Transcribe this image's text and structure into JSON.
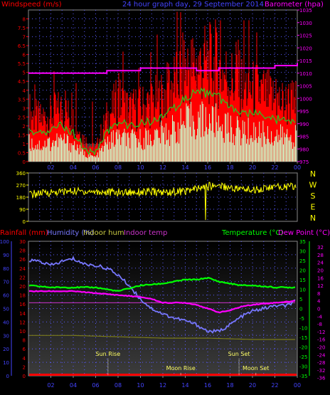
{
  "header": {
    "windspeed_label": "Windspeed (m/s)",
    "title": "24 hour graph day, 29 September 2014",
    "barometer_label": "Barometer (hpa)"
  },
  "direction_letters": [
    "N",
    "W",
    "S",
    "E",
    "N"
  ],
  "bottom_header": {
    "rainfall": "Rainfall (mm)",
    "humidity": "Humidity (%)",
    "indoor_hum": "Indoor hum",
    "indoor_temp": "Indoor temp",
    "temperature": "Temperature (°C)",
    "dew_point": "Dew Point (°C)"
  },
  "events": [
    {
      "label": "Sun Rise",
      "x": 7.1
    },
    {
      "label": "Moon Rise",
      "x": 13.6
    },
    {
      "label": "Sun Set",
      "x": 18.8
    },
    {
      "label": "Moon Set",
      "x": 20.3
    }
  ],
  "colors": {
    "wind": "#ff0000",
    "wind_avg": "#22cc22",
    "wind_base": "#ccffcc",
    "barometer": "#ff00ff",
    "direction": "#ffff00",
    "humidity": "#7777ff",
    "indoor_hum": "#7a7a1a",
    "indoor_temp": "#cc33cc",
    "temperature": "#00ff00",
    "dew_point": "#ff00ff",
    "rain": "#ff0000",
    "event": "#ffff66",
    "axis_left_bottom": "#4444ff",
    "axis_rain": "#ff0000",
    "axis_temp": "#00ff00",
    "axis_dew": "#ff00ff",
    "axis_wind": "#ff0000",
    "axis_dir": "#ffff00",
    "axis_x": "#4444ff",
    "grid": "#5a5aff"
  },
  "chart_data": [
    {
      "type": "line",
      "title": "24 hour graph day, 29 September 2014",
      "ylabel": "Windspeed (m/s)",
      "y2label": "Barometer (hpa)",
      "xlim": [
        0,
        24
      ],
      "x_ticks": [
        "02",
        "04",
        "06",
        "08",
        "10",
        "12",
        "14",
        "16",
        "18",
        "20",
        "22",
        "00"
      ],
      "ylim": [
        0,
        8.5
      ],
      "y_ticks": [
        "0",
        "0.5",
        "1",
        "1.5",
        "2",
        "2.5",
        "3",
        "3.5",
        "4",
        "4.5",
        "5",
        "5.5",
        "6",
        "6.5",
        "7",
        "7.5",
        "8"
      ],
      "y2lim": [
        975,
        1035
      ],
      "y2_ticks": [
        "975",
        "980",
        "985",
        "990",
        "995",
        "1000",
        "1005",
        "1010",
        "1015",
        "1020",
        "1025",
        "1030",
        "1035"
      ],
      "grid": true,
      "series": [
        {
          "name": "Windspeed",
          "role": "wind_max",
          "x": [
            0,
            1,
            2,
            3,
            4,
            5,
            6,
            7,
            8,
            9,
            10,
            11,
            12,
            13,
            14,
            15,
            16,
            17,
            18,
            19,
            20,
            21,
            22,
            23,
            24
          ],
          "values": [
            2.8,
            2.3,
            2.6,
            2.9,
            2.3,
            1.2,
            0.7,
            2.4,
            3.4,
            2.9,
            3.0,
            3.3,
            3.6,
            4.4,
            5.2,
            5.3,
            5.5,
            5.2,
            4.6,
            4.3,
            4.0,
            3.8,
            3.4,
            3.2,
            3.3
          ]
        },
        {
          "name": "Windspeed",
          "role": "wind_avg",
          "x": [
            0,
            1,
            2,
            3,
            4,
            5,
            6,
            7,
            8,
            9,
            10,
            11,
            12,
            13,
            14,
            15,
            16,
            17,
            18,
            19,
            20,
            21,
            22,
            23,
            24
          ],
          "values": [
            1.8,
            1.5,
            1.8,
            2.0,
            1.6,
            0.7,
            0.4,
            1.7,
            2.3,
            2.0,
            2.1,
            2.3,
            2.6,
            3.0,
            3.6,
            3.9,
            3.8,
            3.6,
            3.0,
            2.8,
            2.7,
            2.6,
            2.4,
            2.3,
            2.4
          ]
        },
        {
          "name": "Barometer",
          "role": "barometer",
          "x": [
            0,
            2,
            5,
            6,
            7,
            8,
            10,
            12,
            14,
            15,
            16,
            17,
            18,
            19,
            20,
            21,
            22,
            23,
            24
          ],
          "values": [
            1010,
            1010,
            1010,
            1010,
            1011,
            1011,
            1012,
            1012,
            1012,
            1011,
            1011,
            1012,
            1012,
            1012,
            1012,
            1012,
            1013,
            1013,
            1014
          ]
        }
      ]
    },
    {
      "type": "line",
      "ylabel": "Wind direction",
      "xlim": [
        0,
        24
      ],
      "ylim": [
        0,
        360
      ],
      "y_ticks": [
        "0",
        "90",
        "180",
        "270",
        "360"
      ],
      "grid": true,
      "series": [
        {
          "name": "Direction",
          "x": [
            0,
            2,
            4,
            6,
            8,
            10,
            12,
            14,
            15,
            16,
            17,
            18,
            19,
            20,
            21,
            22,
            24
          ],
          "values": [
            200,
            215,
            225,
            220,
            215,
            220,
            215,
            225,
            240,
            260,
            270,
            250,
            240,
            235,
            245,
            255,
            260
          ]
        }
      ]
    },
    {
      "type": "line",
      "xlim": [
        0,
        24
      ],
      "x_ticks": [
        "02",
        "04",
        "06",
        "08",
        "10",
        "12",
        "14",
        "16",
        "18",
        "20",
        "22",
        "00"
      ],
      "ylim": [
        0,
        100
      ],
      "y_ticks": [
        "0",
        "10",
        "20",
        "30",
        "40",
        "50",
        "60",
        "70",
        "80",
        "90",
        "100"
      ],
      "y_rain_ticks": [
        "0",
        "2",
        "4",
        "6",
        "8",
        "10",
        "12",
        "14",
        "16",
        "18",
        "20",
        "22",
        "24",
        "26",
        "28",
        "30"
      ],
      "y_temp_lim": [
        -35,
        35
      ],
      "y_temp_ticks": [
        "-35",
        "-30",
        "-25",
        "-20",
        "-15",
        "-10",
        "-5",
        "0",
        "5",
        "10",
        "15",
        "20",
        "25",
        "30",
        "35"
      ],
      "y_dew_ticks": [
        "-36",
        "-34",
        "-32",
        "-30",
        "-28",
        "-26",
        "-24",
        "-22",
        "-20",
        "-18",
        "-16",
        "-14",
        "-12",
        "-10",
        "-8",
        "-6",
        "-4",
        "-2",
        "0",
        "2",
        "4",
        "6",
        "8",
        "10",
        "12",
        "14",
        "16",
        "18",
        "20",
        "22",
        "24",
        "26",
        "28",
        "30",
        "32",
        "34"
      ],
      "grid": true,
      "series": [
        {
          "name": "Humidity (%)",
          "role": "humidity",
          "axis": "humidity",
          "x": [
            0,
            1,
            2,
            3,
            4,
            5,
            6,
            7,
            8,
            9,
            10,
            11,
            12,
            13,
            14,
            15,
            16,
            17,
            18,
            19,
            20,
            21,
            22,
            23,
            24
          ],
          "values": [
            86,
            85,
            82,
            85,
            87,
            83,
            82,
            80,
            75,
            67,
            57,
            50,
            46,
            43,
            41,
            38,
            33,
            33,
            38,
            44,
            48,
            50,
            52,
            52,
            56
          ]
        },
        {
          "name": "Indoor hum",
          "role": "indoor_hum",
          "axis": "humidity",
          "x": [
            0,
            4,
            8,
            12,
            16,
            20,
            24
          ],
          "values": [
            30,
            30,
            29,
            28,
            28,
            27,
            27
          ]
        },
        {
          "name": "Indoor temp",
          "role": "indoor_temp",
          "axis": "temp",
          "x": [
            0,
            4,
            8,
            12,
            16,
            20,
            24
          ],
          "values": [
            3,
            3,
            3,
            3,
            3,
            3,
            3
          ]
        },
        {
          "name": "Temperature (°C)",
          "role": "temperature",
          "axis": "temp",
          "x": [
            0,
            2,
            4,
            6,
            8,
            10,
            12,
            14,
            15,
            16,
            17,
            18,
            19,
            20,
            22,
            24
          ],
          "values": [
            12,
            11,
            11,
            11,
            9,
            12,
            13,
            15,
            15,
            16,
            14,
            13,
            12,
            12,
            11,
            11
          ]
        },
        {
          "name": "Dew Point (°C)",
          "role": "dew_point",
          "axis": "temp",
          "x": [
            0,
            2,
            4,
            6,
            8,
            10,
            11,
            12,
            13,
            14,
            15,
            16,
            17,
            18,
            19,
            20,
            22,
            24
          ],
          "values": [
            9,
            9,
            9,
            8,
            7,
            6,
            5,
            3,
            3,
            3,
            2,
            0,
            -2,
            -1,
            1,
            2,
            3,
            4
          ]
        },
        {
          "name": "Rainfall (mm)",
          "role": "rain",
          "axis": "humidity",
          "x": [
            0,
            24
          ],
          "values": [
            0,
            0
          ]
        }
      ]
    }
  ]
}
